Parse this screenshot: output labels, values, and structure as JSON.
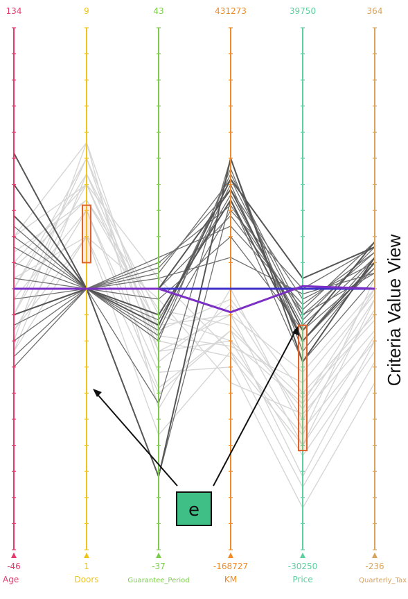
{
  "view_title": "Criteria Value View",
  "callout_label": "e",
  "colors": {
    "background_lines": "#d6d6d6",
    "highlight_lines": "#6f6f6f",
    "dark_lines": "#555555",
    "blue_line": "#3d2fc7",
    "purple_line": "#7b2fc4",
    "brush_box": "#e0622b",
    "callout_bg": "#3fbf86"
  },
  "chart_data": {
    "type": "parallel_coordinates",
    "title": "",
    "axes": [
      {
        "name": "Age",
        "max": "134",
        "min": "-46",
        "color": "#e8396b"
      },
      {
        "name": "Doors",
        "max": "9",
        "min": "1",
        "color": "#f0c419"
      },
      {
        "name": "Guarantee_Period",
        "max": "43",
        "min": "-37",
        "color": "#7ccc4b"
      },
      {
        "name": "KM",
        "max": "431273",
        "min": "-168727",
        "color": "#f08a24"
      },
      {
        "name": "Price",
        "max": "39750",
        "min": "-30250",
        "color": "#5ccf9e"
      },
      {
        "name": "Quarterly_Tax",
        "max": "364",
        "min": "-236",
        "color": "#d9a25b"
      }
    ],
    "brushes": [
      {
        "axis": "Doors",
        "range_fraction": [
          0.34,
          0.45
        ]
      },
      {
        "axis": "Price",
        "range_fraction": [
          0.57,
          0.81
        ]
      }
    ],
    "background_polylines": [
      [
        0.62,
        0.28,
        0.55,
        0.6,
        0.72,
        0.5
      ],
      [
        0.6,
        0.22,
        0.62,
        0.55,
        0.8,
        0.52
      ],
      [
        0.58,
        0.4,
        0.7,
        0.58,
        0.86,
        0.6
      ],
      [
        0.55,
        0.3,
        0.48,
        0.62,
        0.78,
        0.48
      ],
      [
        0.52,
        0.35,
        0.66,
        0.65,
        0.92,
        0.68
      ],
      [
        0.5,
        0.25,
        0.58,
        0.52,
        0.7,
        0.55
      ],
      [
        0.48,
        0.4,
        0.52,
        0.68,
        0.74,
        0.58
      ],
      [
        0.45,
        0.3,
        0.62,
        0.6,
        0.82,
        0.62
      ],
      [
        0.43,
        0.33,
        0.57,
        0.55,
        0.66,
        0.5
      ],
      [
        0.4,
        0.22,
        0.73,
        0.5,
        0.77,
        0.6
      ],
      [
        0.62,
        0.4,
        0.78,
        0.62,
        0.88,
        0.64
      ],
      [
        0.58,
        0.35,
        0.69,
        0.58,
        0.71,
        0.56
      ],
      [
        0.55,
        0.25,
        0.64,
        0.53,
        0.75,
        0.54
      ],
      [
        0.5,
        0.28,
        0.6,
        0.63,
        0.8,
        0.59
      ],
      [
        0.46,
        0.33,
        0.54,
        0.57,
        0.73,
        0.52
      ],
      [
        0.4,
        0.3,
        0.59,
        0.61,
        0.68,
        0.51
      ]
    ],
    "highlight_polylines": [
      [
        0.65,
        0.5,
        0.86,
        0.33,
        0.64,
        0.48
      ],
      [
        0.63,
        0.5,
        0.72,
        0.25,
        0.62,
        0.45
      ],
      [
        0.6,
        0.5,
        0.58,
        0.3,
        0.6,
        0.44
      ],
      [
        0.57,
        0.5,
        0.52,
        0.4,
        0.58,
        0.46
      ],
      [
        0.55,
        0.5,
        0.47,
        0.29,
        0.56,
        0.42
      ],
      [
        0.52,
        0.5,
        0.45,
        0.34,
        0.55,
        0.47
      ],
      [
        0.5,
        0.5,
        0.44,
        0.38,
        0.53,
        0.43
      ],
      [
        0.48,
        0.5,
        0.46,
        0.31,
        0.52,
        0.45
      ],
      [
        0.45,
        0.5,
        0.5,
        0.36,
        0.54,
        0.41
      ],
      [
        0.42,
        0.5,
        0.56,
        0.32,
        0.57,
        0.44
      ],
      [
        0.4,
        0.5,
        0.6,
        0.27,
        0.6,
        0.46
      ],
      [
        0.38,
        0.5,
        0.59,
        0.35,
        0.5,
        0.42
      ],
      [
        0.36,
        0.5,
        0.48,
        0.44,
        0.51,
        0.47
      ],
      [
        0.3,
        0.5,
        0.57,
        0.28,
        0.55,
        0.43
      ]
    ],
    "dark_polylines": [
      [
        0.24,
        0.5,
        0.86,
        0.25,
        0.64,
        0.44
      ],
      [
        0.3,
        0.5,
        0.57,
        0.29,
        0.48,
        0.42
      ],
      [
        0.36,
        0.5,
        0.5,
        0.31,
        0.58,
        0.41
      ],
      [
        0.55,
        0.5,
        0.55,
        0.33,
        0.6,
        0.45
      ]
    ],
    "blue_polyline": [
      0.5,
      0.5,
      0.5,
      0.5,
      0.5,
      0.5
    ],
    "purple_polyline": [
      0.5,
      0.5,
      0.5,
      0.545,
      0.495,
      0.5
    ]
  }
}
